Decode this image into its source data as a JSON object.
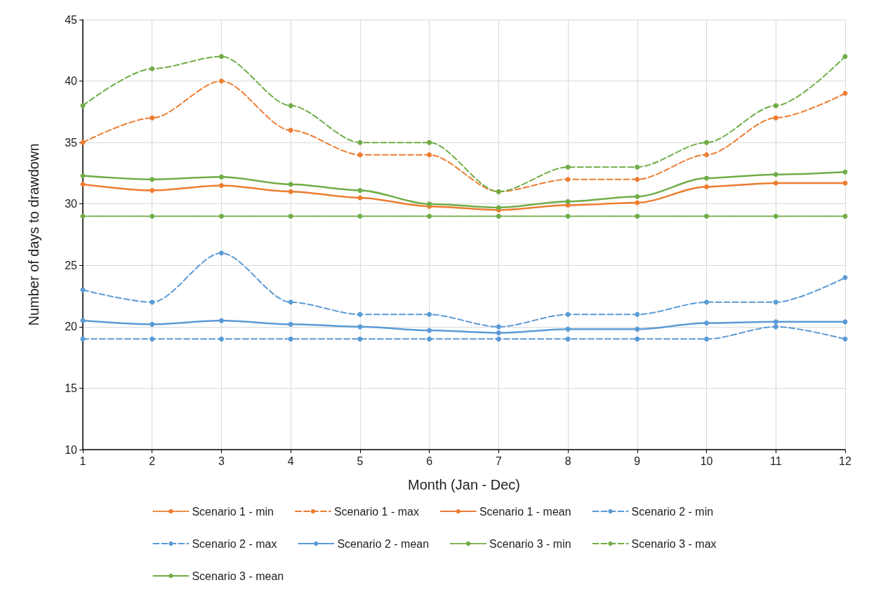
{
  "chart_data": {
    "type": "line",
    "xlabel": "Month (Jan - Dec)",
    "ylabel": "Number of days to drawdown",
    "x": [
      1,
      2,
      3,
      4,
      5,
      6,
      7,
      8,
      9,
      10,
      11,
      12
    ],
    "xlim": [
      1,
      12
    ],
    "xticks": [
      1,
      2,
      3,
      4,
      5,
      6,
      7,
      8,
      9,
      10,
      11,
      12
    ],
    "ylim": [
      10,
      45
    ],
    "yticks": [
      10,
      15,
      20,
      25,
      30,
      35,
      40,
      45
    ],
    "grid": true,
    "legend": "bottom",
    "marker": "circle",
    "series": [
      {
        "name": "Scenario 1 - min",
        "color": "#ed7d31",
        "line_style": "dotted",
        "values": [
          null,
          null,
          null,
          null,
          null,
          null,
          null,
          null,
          null,
          null,
          null,
          null
        ]
      },
      {
        "name": "Scenario 1 - max",
        "color": "#ed7d31",
        "line_style": "dashed",
        "values": [
          35,
          37,
          40,
          36,
          34,
          34,
          31,
          32,
          32,
          34,
          37,
          39
        ]
      },
      {
        "name": "Scenario 1 - mean",
        "color": "#ed7d31",
        "line_style": "solid",
        "values": [
          31.6,
          31.1,
          31.5,
          31.0,
          30.5,
          29.8,
          29.5,
          29.9,
          30.1,
          31.4,
          31.7,
          31.7
        ]
      },
      {
        "name": "Scenario 2 - min",
        "color": "#5b9bd5",
        "line_style": "dashed",
        "values": [
          19,
          19,
          19,
          19,
          19,
          19,
          19,
          19,
          19,
          19,
          20,
          19
        ]
      },
      {
        "name": "Scenario 2 - max",
        "color": "#5b9bd5",
        "line_style": "dashed",
        "values": [
          23,
          22,
          26,
          22,
          21,
          21,
          20,
          21,
          21,
          22,
          22,
          24
        ]
      },
      {
        "name": "Scenario 2 - mean",
        "color": "#5b9bd5",
        "line_style": "solid",
        "values": [
          20.5,
          20.2,
          20.5,
          20.2,
          20.0,
          19.7,
          19.5,
          19.8,
          19.8,
          20.3,
          20.4,
          20.4
        ]
      },
      {
        "name": "Scenario 3 - min",
        "color": "#70ad47",
        "line_style": "dotted",
        "values": [
          29,
          29,
          29,
          29,
          29,
          29,
          29,
          29,
          29,
          29,
          29,
          29
        ]
      },
      {
        "name": "Scenario 3 - max",
        "color": "#70ad47",
        "line_style": "dashed",
        "values": [
          38,
          41,
          42,
          38,
          35,
          35,
          31,
          33,
          33,
          35,
          38,
          42
        ]
      },
      {
        "name": "Scenario 3 - mean",
        "color": "#70ad47",
        "line_style": "solid",
        "values": [
          32.3,
          32.0,
          32.2,
          31.6,
          31.1,
          30.0,
          29.7,
          30.2,
          30.6,
          32.1,
          32.4,
          32.6
        ]
      }
    ]
  }
}
